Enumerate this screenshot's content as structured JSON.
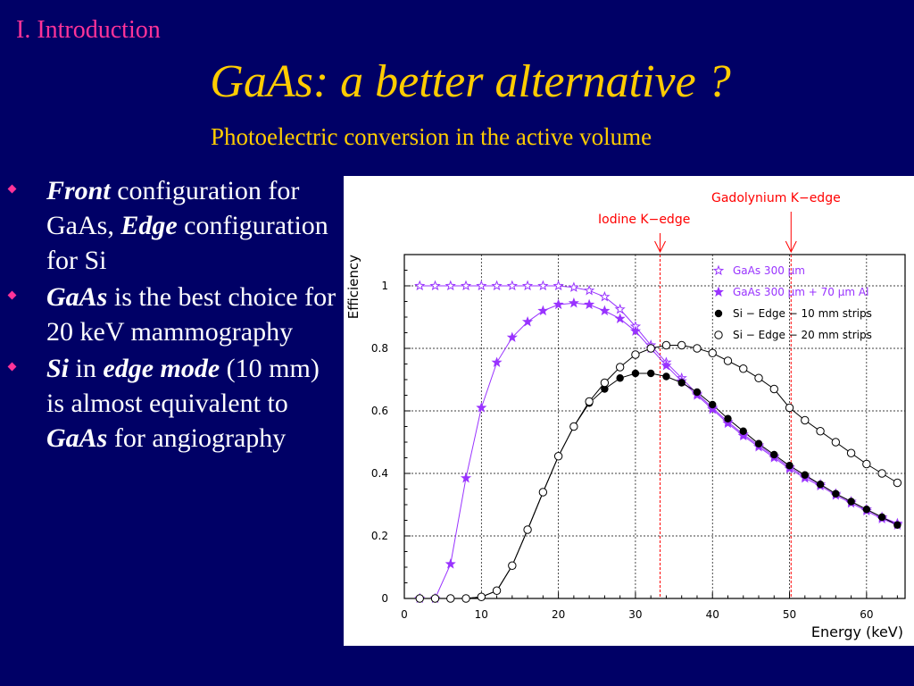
{
  "header": {
    "section": "I. Introduction",
    "title": "GaAs: a better alternative ?",
    "subtitle": "Photoelectric conversion in the active volume"
  },
  "bullets": [
    {
      "parts": [
        {
          "t": "Front",
          "s": "bi"
        },
        {
          "t": " configuration for GaAs, ",
          "s": ""
        },
        {
          "t": "Edge",
          "s": "bi"
        },
        {
          "t": " configuration for Si",
          "s": ""
        }
      ]
    },
    {
      "parts": [
        {
          "t": "GaAs",
          "s": "bi"
        },
        {
          "t": " is the best choice for 20 keV mammography",
          "s": ""
        }
      ]
    },
    {
      "parts": [
        {
          "t": "Si",
          "s": "bi"
        },
        {
          "t": " in ",
          "s": ""
        },
        {
          "t": "edge mode",
          "s": "bi"
        },
        {
          "t": " (10 mm) is almost equivalent to ",
          "s": ""
        },
        {
          "t": "GaAs",
          "s": "bi"
        },
        {
          "t": " for angiography",
          "s": ""
        }
      ]
    }
  ],
  "colors": {
    "background": "#000066",
    "section": "#ff3399",
    "title": "#ffcc00",
    "bullet_marker": "#ff3399",
    "gaas": "#9933ff",
    "si": "#000000",
    "kedge": "#ff0000"
  },
  "chart_data": {
    "type": "scatter",
    "xlabel": "Energy (keV)",
    "ylabel": "Efficiency",
    "xlim": [
      0,
      65
    ],
    "ylim": [
      0,
      1.1
    ],
    "xticks": [
      0,
      10,
      20,
      30,
      40,
      50,
      60
    ],
    "yticks": [
      0,
      0.2,
      0.4,
      0.6,
      0.8,
      1
    ],
    "grid": true,
    "legend_position": "top-right",
    "annotations": [
      {
        "label": "Iodine K−edge",
        "x": 33.2
      },
      {
        "label": "Gadolynium K−edge",
        "x": 50.2
      }
    ],
    "series": [
      {
        "name": "GaAs 300 μm",
        "marker": "star-open",
        "color": "#9933ff",
        "x": [
          2,
          4,
          6,
          8,
          10,
          12,
          14,
          16,
          18,
          20,
          22,
          24,
          26,
          28,
          30,
          32,
          34,
          36,
          38,
          40,
          42,
          44,
          46,
          48,
          50,
          52,
          54,
          56,
          58,
          60,
          62,
          64
        ],
        "y": [
          1.0,
          1.0,
          1.0,
          1.0,
          1.0,
          1.0,
          1.0,
          1.0,
          1.0,
          1.0,
          0.995,
          0.985,
          0.965,
          0.925,
          0.87,
          0.81,
          0.755,
          0.705,
          0.655,
          0.61,
          0.565,
          0.525,
          0.49,
          0.455,
          0.42,
          0.39,
          0.365,
          0.335,
          0.31,
          0.285,
          0.26,
          0.24
        ]
      },
      {
        "name": "GaAs 300 μm + 70 μm Al",
        "marker": "star-filled",
        "color": "#9933ff",
        "x": [
          2,
          4,
          6,
          8,
          10,
          12,
          14,
          16,
          18,
          20,
          22,
          24,
          26,
          28,
          30,
          32,
          34,
          36,
          38,
          40,
          42,
          44,
          46,
          48,
          50,
          52,
          54,
          56,
          58,
          60,
          62,
          64
        ],
        "y": [
          0.0,
          0.0,
          0.11,
          0.385,
          0.61,
          0.755,
          0.835,
          0.885,
          0.92,
          0.94,
          0.945,
          0.94,
          0.92,
          0.895,
          0.855,
          0.8,
          0.745,
          0.695,
          0.65,
          0.605,
          0.56,
          0.52,
          0.485,
          0.45,
          0.415,
          0.385,
          0.36,
          0.33,
          0.305,
          0.28,
          0.255,
          0.235
        ]
      },
      {
        "name": "Si − Edge − 10 mm strips",
        "marker": "circle-filled",
        "color": "#000000",
        "x": [
          2,
          4,
          6,
          8,
          10,
          12,
          14,
          16,
          18,
          20,
          22,
          24,
          26,
          28,
          30,
          32,
          34,
          36,
          38,
          40,
          42,
          44,
          46,
          48,
          50,
          52,
          54,
          56,
          58,
          60,
          62,
          64
        ],
        "y": [
          0.0,
          0.0,
          0.0,
          0.0,
          0.005,
          0.025,
          0.105,
          0.22,
          0.34,
          0.455,
          0.55,
          0.625,
          0.67,
          0.705,
          0.72,
          0.72,
          0.71,
          0.69,
          0.66,
          0.62,
          0.575,
          0.535,
          0.495,
          0.46,
          0.425,
          0.395,
          0.365,
          0.335,
          0.31,
          0.285,
          0.26,
          0.235
        ]
      },
      {
        "name": "Si − Edge − 20 mm strips",
        "marker": "circle-open",
        "color": "#000000",
        "x": [
          2,
          4,
          6,
          8,
          10,
          12,
          14,
          16,
          18,
          20,
          22,
          24,
          26,
          28,
          30,
          32,
          34,
          36,
          38,
          40,
          42,
          44,
          46,
          48,
          50,
          52,
          54,
          56,
          58,
          60,
          62,
          64
        ],
        "y": [
          0.0,
          0.0,
          0.0,
          0.0,
          0.005,
          0.025,
          0.105,
          0.22,
          0.34,
          0.455,
          0.55,
          0.63,
          0.69,
          0.74,
          0.78,
          0.8,
          0.81,
          0.81,
          0.8,
          0.785,
          0.76,
          0.735,
          0.705,
          0.67,
          0.61,
          0.57,
          0.535,
          0.5,
          0.465,
          0.43,
          0.4,
          0.37
        ]
      }
    ]
  }
}
